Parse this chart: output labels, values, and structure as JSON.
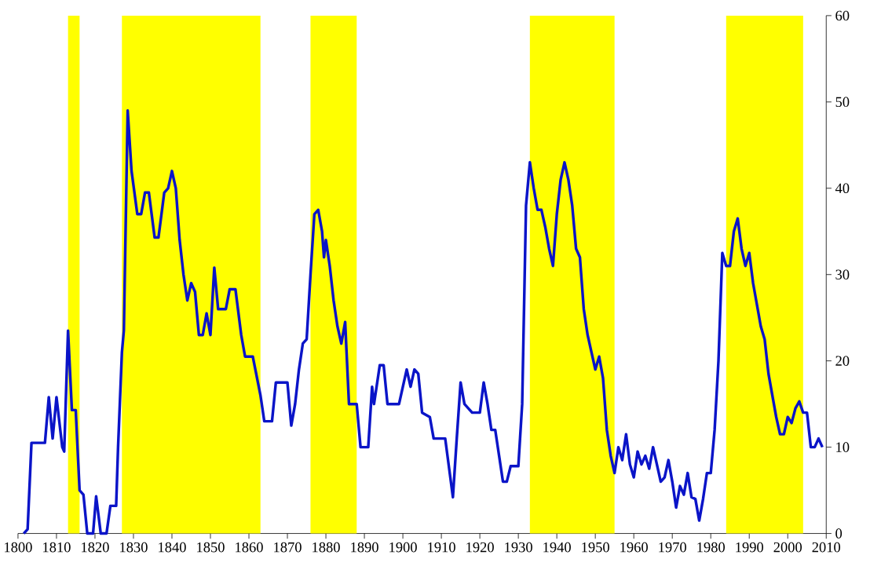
{
  "chart_data": {
    "type": "line",
    "x": [
      1801.5,
      1802.5,
      1803.5,
      1807,
      1808,
      1809,
      1810,
      1811.5,
      1812,
      1813,
      1814,
      1815,
      1816,
      1817,
      1818,
      1819.5,
      1820.3,
      1821.5,
      1823,
      1824,
      1825.5,
      1826,
      1827,
      1827.5,
      1828.5,
      1829.5,
      1831,
      1832,
      1833,
      1834,
      1835.5,
      1836.5,
      1838,
      1839,
      1840,
      1841,
      1842,
      1843,
      1844,
      1845,
      1846,
      1847,
      1848,
      1849,
      1850,
      1851,
      1852,
      1854,
      1855,
      1856.5,
      1858,
      1859,
      1861,
      1863,
      1864,
      1866,
      1867,
      1870,
      1871,
      1872,
      1873,
      1874,
      1875,
      1876,
      1877,
      1878,
      1879,
      1879.5,
      1880,
      1881,
      1882,
      1883,
      1884,
      1885,
      1886,
      1888,
      1889,
      1891,
      1892,
      1892.5,
      1893,
      1894,
      1895,
      1896,
      1899,
      1901,
      1902,
      1903,
      1904,
      1905,
      1907,
      1908,
      1911,
      1913,
      1914,
      1915,
      1916,
      1917,
      1918,
      1920,
      1921,
      1922,
      1923,
      1924,
      1925,
      1926,
      1927,
      1928,
      1930,
      1931,
      1932,
      1933,
      1934,
      1935,
      1936,
      1937,
      1938,
      1939,
      1940,
      1941,
      1942,
      1943,
      1944,
      1945,
      1946,
      1947,
      1948,
      1949,
      1950,
      1951,
      1952,
      1953,
      1954,
      1955,
      1956,
      1957,
      1958,
      1959,
      1960,
      1961,
      1962,
      1963,
      1964,
      1965,
      1966,
      1967,
      1968,
      1969,
      1970,
      1971,
      1972,
      1973,
      1974,
      1975,
      1976,
      1977,
      1978,
      1979,
      1980,
      1981,
      1982,
      1983,
      1984,
      1985,
      1986,
      1987,
      1988,
      1989,
      1990,
      1991,
      1992,
      1993,
      1994,
      1995,
      1996,
      1997,
      1998,
      1999,
      2000,
      2001,
      2002,
      2003,
      2004,
      2005,
      2006,
      2007,
      2008,
      2009
    ],
    "series": [
      {
        "color": "#0a14c8",
        "values": [
          0,
          0.5,
          10.5,
          10.5,
          15.8,
          11,
          15.8,
          10,
          9.5,
          23.5,
          14.3,
          14.3,
          5,
          4.5,
          0,
          0,
          4.3,
          0,
          0,
          3.2,
          3.2,
          10,
          21,
          23.5,
          49,
          42,
          37,
          37,
          39.5,
          39.5,
          34.3,
          34.3,
          39.5,
          40,
          42,
          40,
          34,
          30,
          27,
          29,
          28,
          23,
          23,
          25.5,
          23,
          30.8,
          26,
          26,
          28.3,
          28.3,
          23,
          20.5,
          20.5,
          16,
          13,
          13,
          17.5,
          17.5,
          12.5,
          15,
          19,
          22,
          22.5,
          30,
          37,
          37.5,
          35,
          32,
          34,
          31,
          27,
          24,
          22,
          24.5,
          15,
          15,
          10,
          10,
          17,
          15,
          16.5,
          19.5,
          19.5,
          15,
          15,
          19,
          17,
          19,
          18.5,
          14,
          13.5,
          11,
          11,
          4.2,
          11,
          17.5,
          15,
          14.5,
          14,
          14,
          17.5,
          15,
          12,
          12,
          9,
          6,
          6,
          7.8,
          7.8,
          15,
          38,
          43,
          40,
          37.5,
          37.5,
          35.5,
          33,
          31,
          37,
          41,
          43,
          41,
          38,
          33,
          32,
          26,
          23,
          21,
          19,
          20.5,
          18,
          12,
          9,
          7,
          10,
          8.5,
          11.5,
          8,
          6.5,
          9.5,
          8,
          9,
          7.5,
          10,
          8,
          6,
          6.5,
          8.5,
          6,
          3,
          5.5,
          4.5,
          7,
          4.2,
          4,
          1.5,
          4,
          7,
          7,
          12,
          20,
          32.5,
          31,
          31,
          35,
          36.5,
          33,
          31,
          32.5,
          29,
          26.5,
          24,
          22.5,
          18.5,
          16,
          13.5,
          11.5,
          11.5,
          13.5,
          12.8,
          14.5,
          15.3,
          14,
          14,
          10,
          10,
          11,
          10
        ]
      }
    ],
    "xlim": [
      1800,
      2010
    ],
    "ylim": [
      0,
      60
    ],
    "xticks": [
      1800,
      1810,
      1820,
      1830,
      1840,
      1850,
      1860,
      1870,
      1880,
      1890,
      1900,
      1910,
      1920,
      1930,
      1940,
      1950,
      1960,
      1970,
      1980,
      1990,
      2000,
      2010
    ],
    "yticks": [
      0,
      10,
      20,
      30,
      40,
      50,
      60
    ],
    "grid": false,
    "bands": [
      {
        "axis": "x",
        "from": 1813,
        "to": 1816,
        "color": "#ffff00"
      },
      {
        "axis": "x",
        "from": 1827,
        "to": 1863,
        "color": "#ffff00"
      },
      {
        "axis": "x",
        "from": 1876,
        "to": 1888,
        "color": "#ffff00"
      },
      {
        "axis": "x",
        "from": 1933,
        "to": 1955,
        "color": "#ffff00"
      },
      {
        "axis": "x",
        "from": 1984,
        "to": 2004,
        "color": "#ffff00"
      }
    ]
  }
}
